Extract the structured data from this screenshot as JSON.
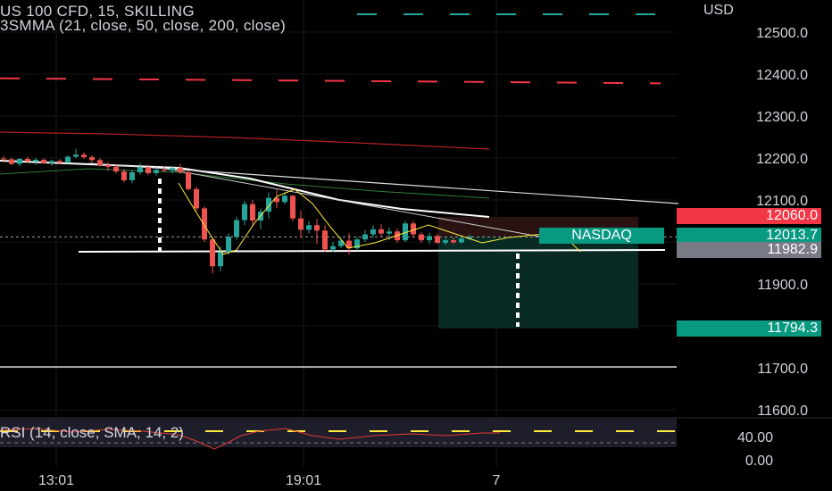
{
  "header": {
    "title": "US 100 CFD, 15, SKILLING",
    "indicator": "3SMMA (21, close, 50, close, 200, close)",
    "currency": "USD"
  },
  "colors": {
    "background": "#000000",
    "up": "#26a69a",
    "down": "#ef5350",
    "sl_zone": "#2a1212",
    "tp_zone": "#082a22",
    "sma200": "#b22222",
    "sma50": "#2e7d32",
    "sma21": "#ffffff",
    "rsi": "#e53935",
    "rsi_ma": "#ffeb3b"
  },
  "tags": {
    "stop": "12060.0",
    "price": "12013.7",
    "hline": "11982.9",
    "target": "11794.3",
    "nasdaq": "NASDAQ"
  },
  "rsi_header": "RSI (14, close, SMA, 14, 2)",
  "chart_data": {
    "type": "candlestick",
    "title": "US 100 CFD, 15, SKILLING",
    "ylim": [
      11570,
      12570
    ],
    "y_ticks": [
      "12500.0",
      "12400.0",
      "12300.0",
      "12200.0",
      "12100.0",
      "12000.0",
      "11900.0",
      "11800.0",
      "11700.0",
      "11600.0"
    ],
    "x_ticks": [
      "13:01",
      "19:01",
      "7"
    ],
    "rsi_ticks": [
      "40.00",
      "0.00"
    ],
    "horizontal_lines": [
      12390,
      12535,
      11983,
      11700
    ],
    "candles": [
      [
        12199,
        12205,
        12190,
        12197
      ],
      [
        12197,
        12201,
        12183,
        12186
      ],
      [
        12186,
        12200,
        12181,
        12198
      ],
      [
        12198,
        12204,
        12190,
        12192
      ],
      [
        12192,
        12200,
        12184,
        12196
      ],
      [
        12196,
        12199,
        12186,
        12188
      ],
      [
        12188,
        12196,
        12182,
        12193
      ],
      [
        12193,
        12197,
        12185,
        12189
      ],
      [
        12189,
        12206,
        12187,
        12203
      ],
      [
        12203,
        12222,
        12200,
        12208
      ],
      [
        12208,
        12214,
        12198,
        12202
      ],
      [
        12202,
        12207,
        12190,
        12195
      ],
      [
        12195,
        12200,
        12180,
        12183
      ],
      [
        12183,
        12190,
        12170,
        12179
      ],
      [
        12179,
        12186,
        12163,
        12168
      ],
      [
        12168,
        12174,
        12142,
        12147
      ],
      [
        12147,
        12172,
        12140,
        12166
      ],
      [
        12166,
        12188,
        12160,
        12178
      ],
      [
        12178,
        12184,
        12160,
        12164
      ],
      [
        12164,
        12178,
        12158,
        12172
      ],
      [
        12172,
        12180,
        12166,
        12170
      ],
      [
        12170,
        12182,
        12163,
        12176
      ],
      [
        12176,
        12186,
        12162,
        12166
      ],
      [
        12166,
        12170,
        12122,
        12126
      ],
      [
        12126,
        12132,
        12073,
        12080
      ],
      [
        12080,
        12085,
        12000,
        12006
      ],
      [
        12006,
        12010,
        11925,
        11942
      ],
      [
        11942,
        11990,
        11930,
        11976
      ],
      [
        11976,
        12020,
        11970,
        12012
      ],
      [
        12012,
        12060,
        12005,
        12052
      ],
      [
        12052,
        12098,
        12040,
        12090
      ],
      [
        12090,
        12100,
        12040,
        12051
      ],
      [
        12051,
        12080,
        12030,
        12072
      ],
      [
        12072,
        12118,
        12055,
        12105
      ],
      [
        12105,
        12125,
        12080,
        12095
      ],
      [
        12095,
        12118,
        12090,
        12110
      ],
      [
        12110,
        12112,
        12050,
        12056
      ],
      [
        12056,
        12075,
        12010,
        12029
      ],
      [
        12029,
        12050,
        12020,
        12040
      ],
      [
        12040,
        12055,
        11995,
        12027
      ],
      [
        12027,
        12040,
        11975,
        11982
      ],
      [
        11982,
        12000,
        11975,
        11990
      ],
      [
        11990,
        12010,
        11985,
        12003
      ],
      [
        12003,
        12020,
        11970,
        11985
      ],
      [
        11985,
        12012,
        11980,
        12006
      ],
      [
        12006,
        12028,
        12000,
        12018
      ],
      [
        12018,
        12040,
        12010,
        12030
      ],
      [
        12030,
        12042,
        12012,
        12020
      ],
      [
        12020,
        12035,
        12005,
        12025
      ],
      [
        12025,
        12032,
        11998,
        12004
      ],
      [
        12004,
        12050,
        12000,
        12044
      ],
      [
        12044,
        12050,
        12010,
        12018
      ],
      [
        12018,
        12024,
        11998,
        12004
      ],
      [
        12004,
        12022,
        11995,
        12014
      ],
      [
        12014,
        12020,
        11995,
        11998
      ],
      [
        11998,
        12008,
        11992,
        12004
      ],
      [
        12004,
        12010,
        11995,
        11999
      ],
      [
        11999,
        12012,
        11996,
        12008
      ],
      [
        12008,
        12018,
        12004,
        12012
      ]
    ]
  }
}
